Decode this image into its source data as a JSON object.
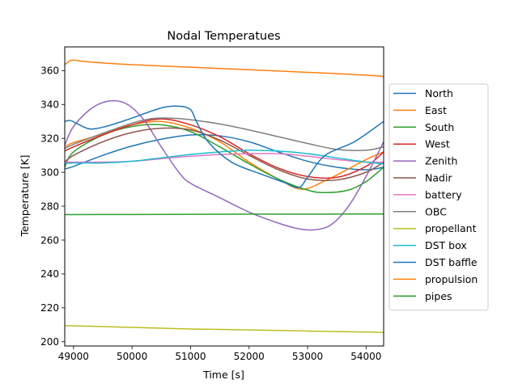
{
  "chart_data": {
    "type": "line",
    "title": "Nodal Temperatues",
    "xlabel": "Time [s]",
    "ylabel": "Temperature [K]",
    "xlim": [
      48850,
      54300
    ],
    "ylim": [
      197.5,
      374
    ],
    "xticks": [
      49000,
      50000,
      51000,
      52000,
      53000,
      54000
    ],
    "yticks": [
      200,
      220,
      240,
      260,
      280,
      300,
      320,
      340,
      360
    ],
    "grid": false,
    "legend_position": "right",
    "series": [
      {
        "name": "North",
        "color": "#1f77b4",
        "x": [
          48850,
          49000,
          49500,
          50000,
          50500,
          51000,
          51500,
          52000,
          52500,
          53000,
          53500,
          54000,
          54300
        ],
        "y": [
          302,
          303.5,
          310,
          315.5,
          319.5,
          322,
          321.5,
          318,
          312,
          306.5,
          303,
          301.5,
          303
        ]
      },
      {
        "name": "East",
        "color": "#ff7f0e",
        "x": [
          48850,
          49000,
          49500,
          50000,
          50500,
          51000,
          51500,
          52000,
          52500,
          52900,
          53300,
          53700,
          54000,
          54300
        ],
        "y": [
          315,
          317.5,
          322.5,
          328,
          330,
          326,
          318,
          306,
          296,
          290,
          295,
          302,
          307.5,
          312
        ]
      },
      {
        "name": "South",
        "color": "#2ca02c",
        "x": [
          48850,
          49000,
          49500,
          50000,
          50500,
          51000,
          51500,
          52000,
          52500,
          53000,
          53300,
          53700,
          54000,
          54300
        ],
        "y": [
          303,
          312,
          322,
          327,
          328,
          324,
          315,
          305,
          296,
          289.5,
          288,
          289.5,
          294.5,
          303
        ]
      },
      {
        "name": "West",
        "color": "#d62728",
        "x": [
          48850,
          49000,
          49500,
          50000,
          50500,
          51000,
          51500,
          52000,
          52500,
          53000,
          53500,
          54000,
          54300
        ],
        "y": [
          312.5,
          315,
          322,
          328,
          331.5,
          328,
          321,
          311,
          302.5,
          297.5,
          297,
          303.5,
          312
        ]
      },
      {
        "name": "Zenith",
        "color": "#9467bd",
        "x": [
          48850,
          49000,
          49300,
          49600,
          49900,
          50200,
          50500,
          50800,
          51000,
          51500,
          52000,
          52500,
          52800,
          53100,
          53400,
          53700,
          54000,
          54300
        ],
        "y": [
          316,
          327,
          337.5,
          342,
          340.5,
          331,
          315,
          300,
          293.5,
          285,
          276.5,
          270,
          267,
          266,
          269,
          280,
          297.5,
          318
        ]
      },
      {
        "name": "Nadir",
        "color": "#8c564b",
        "x": [
          48850,
          49000,
          49500,
          50000,
          50500,
          51000,
          51500,
          52000,
          52500,
          53000,
          53500,
          54000,
          54300
        ],
        "y": [
          306,
          310,
          318,
          323.5,
          326,
          325,
          319,
          310,
          301.5,
          296,
          295.5,
          300,
          306
        ]
      },
      {
        "name": "battery",
        "color": "#e377c2",
        "x": [
          48850,
          49000,
          49500,
          50000,
          50500,
          51000,
          51500,
          52000,
          52500,
          53000,
          53500,
          54000,
          54300
        ],
        "y": [
          306,
          306,
          306,
          306.5,
          308,
          309.5,
          310.5,
          311,
          311,
          309.5,
          307.5,
          306,
          306
        ]
      },
      {
        "name": "OBC",
        "color": "#7f7f7f",
        "x": [
          48850,
          49000,
          49500,
          50000,
          50300,
          50600,
          51000,
          51500,
          52000,
          52500,
          53000,
          53500,
          54000,
          54300
        ],
        "y": [
          314,
          316.5,
          323,
          329,
          331.5,
          332,
          331,
          328.5,
          325,
          321,
          317,
          313.5,
          313,
          315
        ]
      },
      {
        "name": "propellant",
        "color": "#bcbd22",
        "x": [
          48850,
          50000,
          51000,
          52000,
          53000,
          54000,
          54300
        ],
        "y": [
          209.5,
          208.5,
          207.5,
          207,
          206.3,
          205.7,
          205.5
        ]
      },
      {
        "name": "DST box",
        "color": "#17becf",
        "x": [
          48850,
          49000,
          49500,
          50000,
          50500,
          51000,
          51500,
          52000,
          52500,
          53000,
          53500,
          54000,
          54300
        ],
        "y": [
          305,
          305.5,
          305.5,
          306.5,
          308.5,
          310.5,
          312,
          313,
          312.5,
          311,
          308.5,
          306,
          305
        ]
      },
      {
        "name": "DST baffle",
        "color": "#1f77b4",
        "x": [
          48850,
          48950,
          49100,
          49300,
          49600,
          50000,
          50500,
          50800,
          51000,
          51100,
          51300,
          51700,
          52200,
          52600,
          52850,
          53000,
          53300,
          53800,
          54300
        ],
        "y": [
          330,
          330.5,
          328,
          325.5,
          327.5,
          332,
          338,
          339,
          337,
          330,
          318,
          306,
          299,
          294,
          291,
          297,
          310,
          318,
          330
        ]
      },
      {
        "name": "propulsion",
        "color": "#ff7f0e",
        "x": [
          48850,
          48950,
          49050,
          49300,
          50000,
          51000,
          52000,
          53000,
          54000,
          54300
        ],
        "y": [
          363.5,
          366,
          366,
          365,
          363.5,
          362,
          360.5,
          359,
          357.3,
          356.5
        ]
      },
      {
        "name": "pipes",
        "color": "#2ca02c",
        "x": [
          48850,
          50000,
          51000,
          52000,
          53000,
          54000,
          54300
        ],
        "y": [
          275,
          275.1,
          275.2,
          275.3,
          275.3,
          275.4,
          275.4
        ]
      }
    ]
  }
}
